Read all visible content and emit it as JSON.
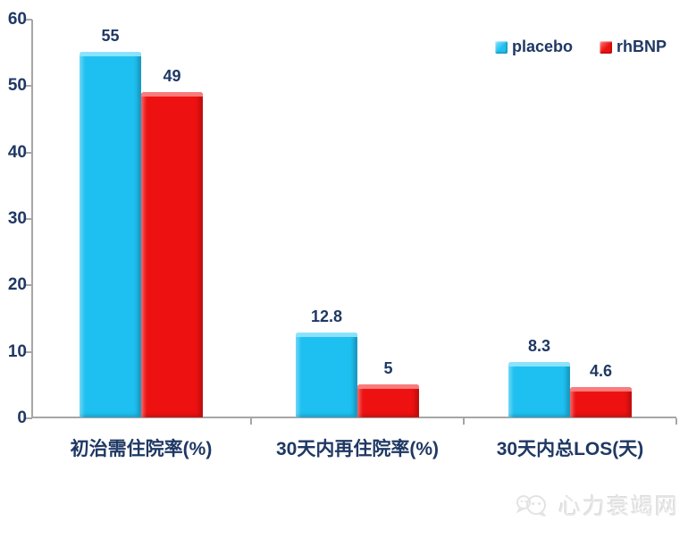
{
  "chart_data": {
    "type": "bar",
    "title": "",
    "categories": [
      "初治需住院率(%)",
      "30天内再住院率(%)",
      "30天内总LOS(天)"
    ],
    "series": [
      {
        "name": "placebo",
        "color": "#1ec0f1",
        "highlight": "#8fe4fb",
        "values": [
          55,
          12.8,
          8.3
        ],
        "value_labels": [
          "55",
          "12.8",
          "8.3"
        ]
      },
      {
        "name": "rhBNP",
        "color": "#ee1111",
        "highlight": "#f98080",
        "values": [
          49,
          5,
          4.6
        ],
        "value_labels": [
          "49",
          "5",
          "4.6"
        ]
      }
    ],
    "ylim": [
      0,
      60
    ],
    "yticks": [
      0,
      10,
      20,
      30,
      40,
      50,
      60
    ],
    "grid": false,
    "legend_position": "top-right",
    "axis_color": "#a6a6a6",
    "label_color": "#1f3864"
  },
  "watermark": {
    "text": "心力衰竭网",
    "logo": "chat-bubbles-logo"
  }
}
